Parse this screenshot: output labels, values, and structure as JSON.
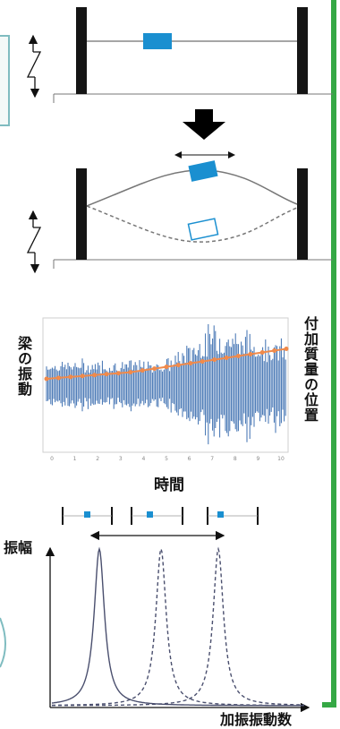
{
  "colors": {
    "accent_green": "#35a845",
    "frame_teal": "#7fbcc0",
    "mass_blue": "#1a8fd0",
    "wall_black": "#151515",
    "signal_blue": "#3d6fb0",
    "trend_orange": "#f08a4b",
    "resonance_line": "#4a4f6e"
  },
  "signal_panel": {
    "y_label": "梁の振動",
    "y2_label": "付加質量の位置",
    "x_label": "時間",
    "x_ticks": [
      "0",
      "1",
      "2",
      "3",
      "4",
      "5",
      "6",
      "7",
      "8",
      "9",
      "10"
    ]
  },
  "resonance_panel": {
    "y_label": "振幅",
    "x_label": "加振振動数"
  }
}
